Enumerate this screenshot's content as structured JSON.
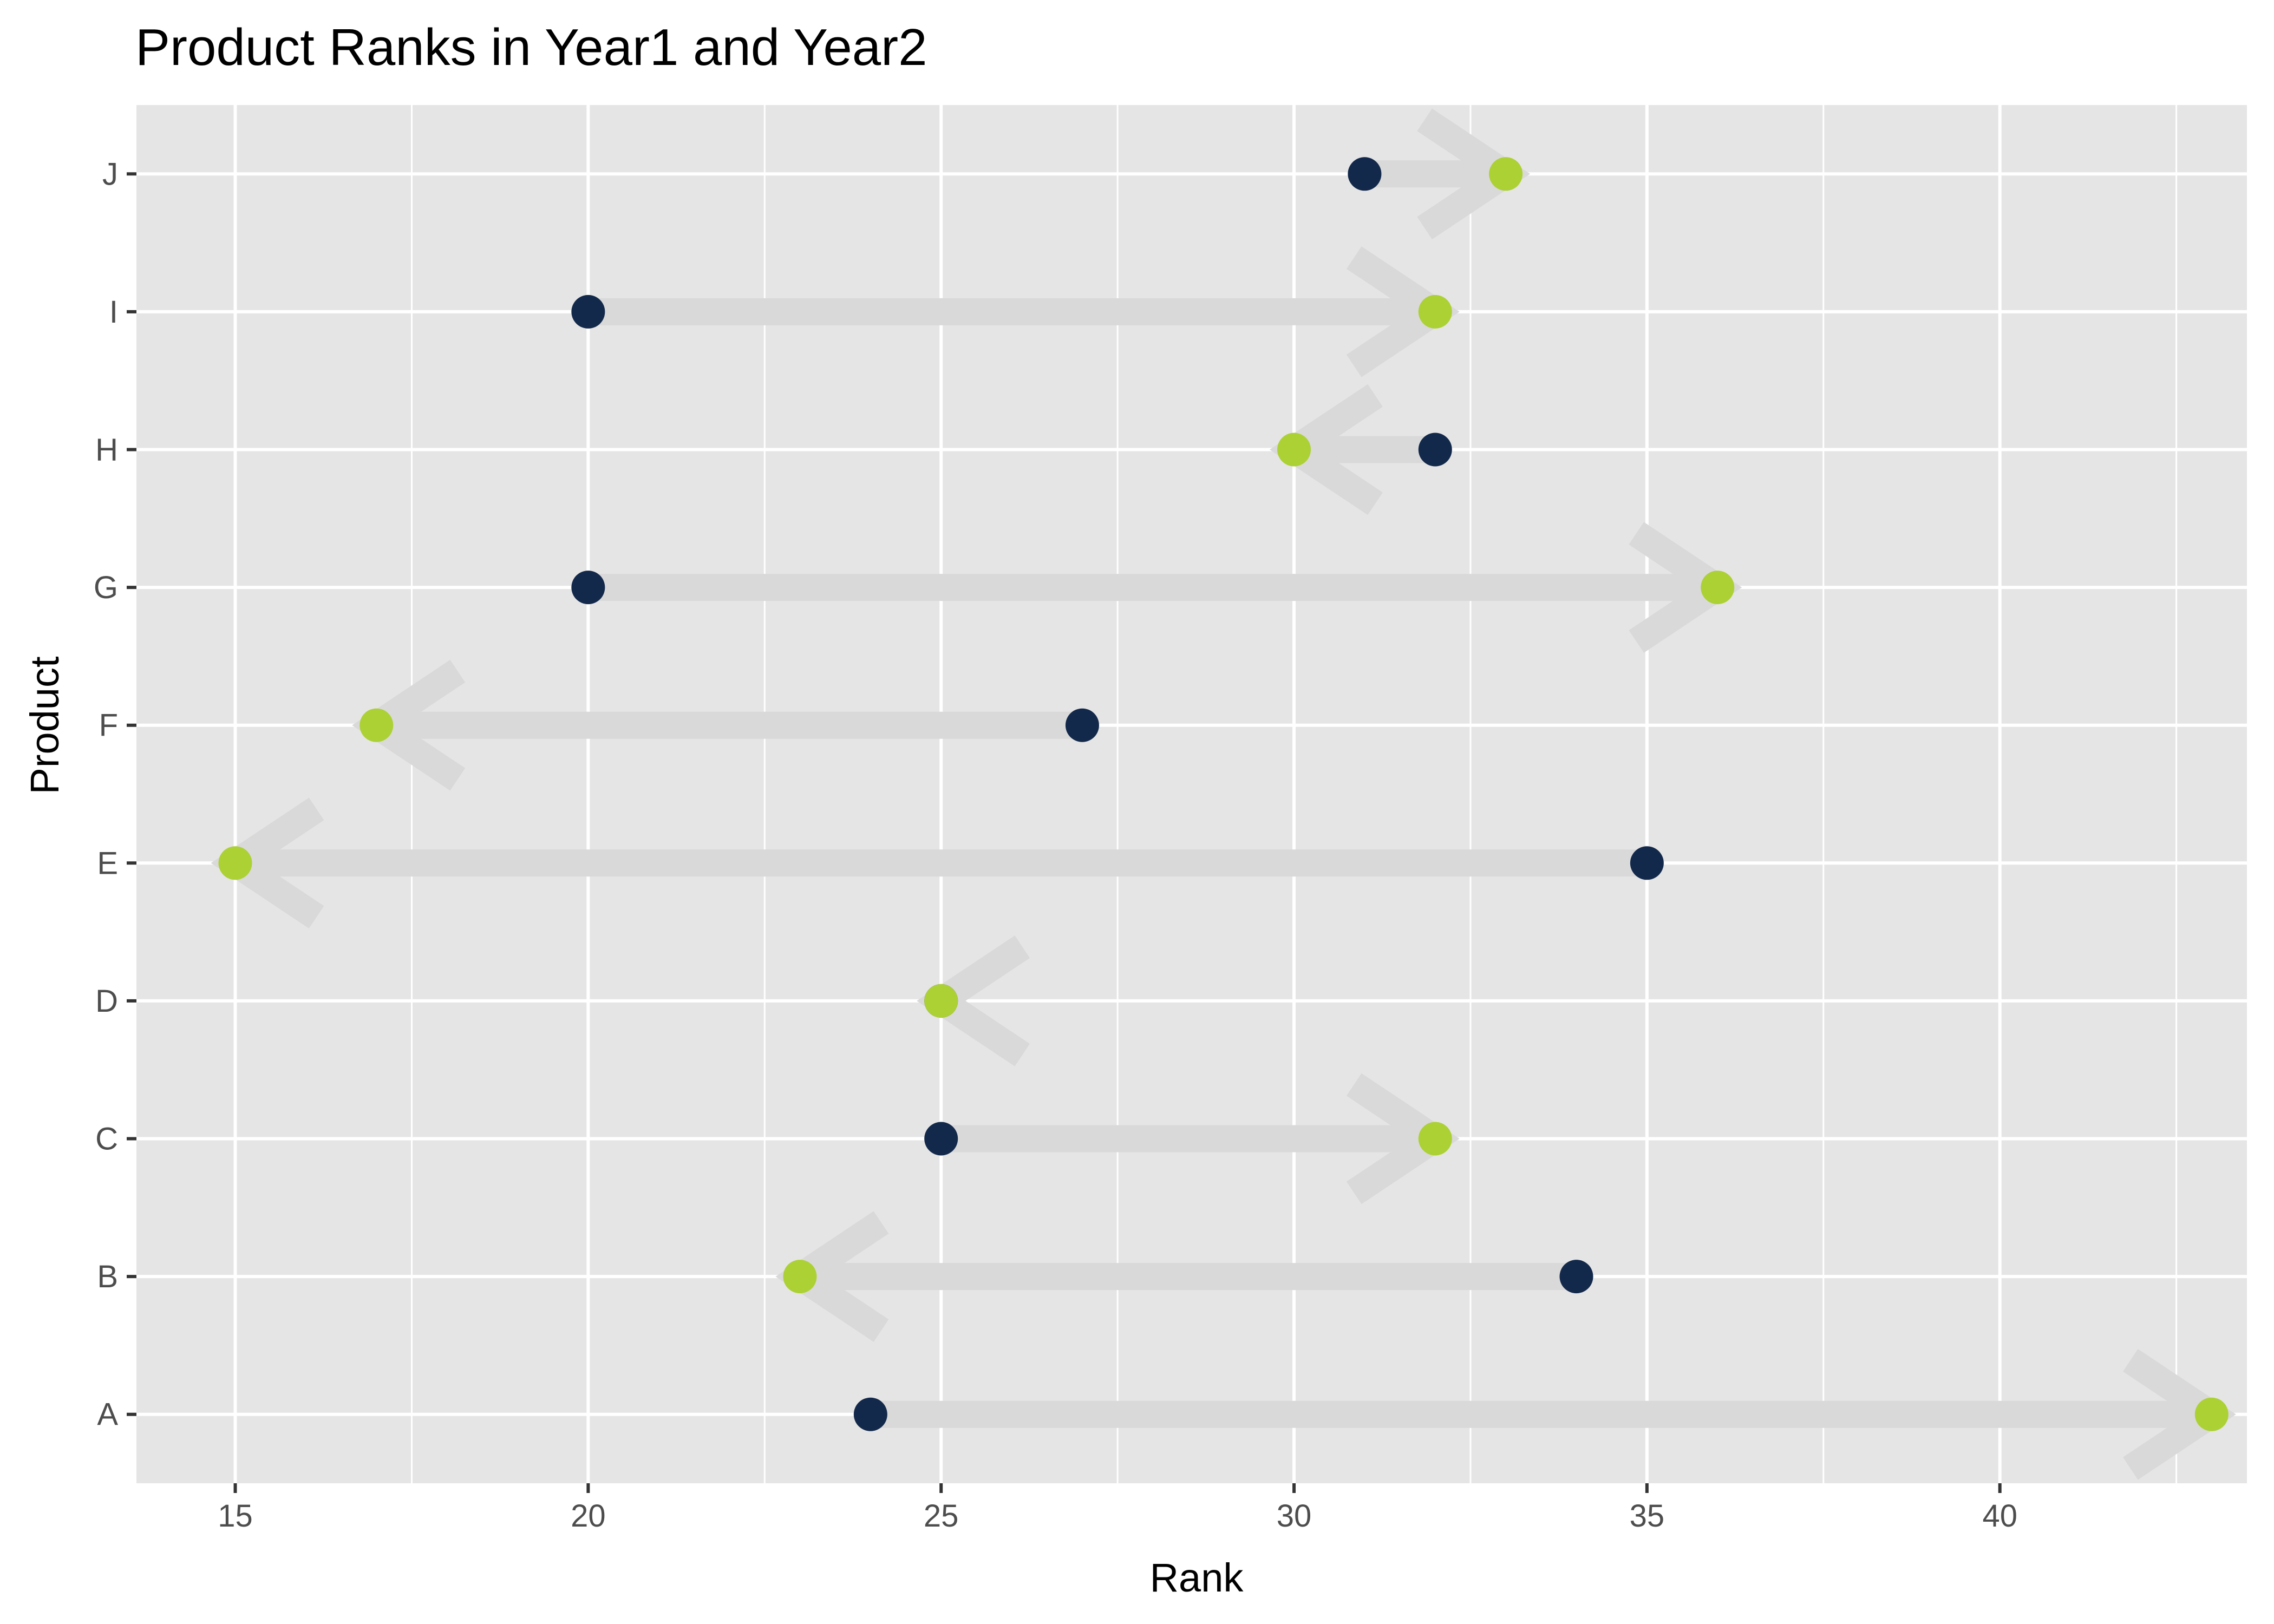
{
  "chart_data": {
    "type": "dumbbell",
    "title": "Product Ranks in Year1 and Year2",
    "xlabel": "Rank",
    "ylabel": "Product",
    "xlim": [
      13.6,
      43.5
    ],
    "x_ticks": [
      15,
      20,
      25,
      30,
      35,
      40
    ],
    "categories": [
      "A",
      "B",
      "C",
      "D",
      "E",
      "F",
      "G",
      "H",
      "I",
      "J"
    ],
    "series": [
      {
        "key": "year1",
        "values": [
          24,
          34,
          25,
          25,
          35,
          27,
          20,
          32,
          20,
          31
        ]
      },
      {
        "key": "year2",
        "values": [
          43,
          23,
          32,
          25,
          15,
          17,
          36,
          30,
          32,
          33
        ]
      }
    ],
    "grid": true,
    "legend": "none",
    "colors": {
      "panel_background": "#e5e5e5",
      "grid": "#ffffff",
      "arrow": "#d9d9d9",
      "year1_point": "#13294b",
      "year2_point": "#acd135",
      "tick": "#333333"
    }
  }
}
